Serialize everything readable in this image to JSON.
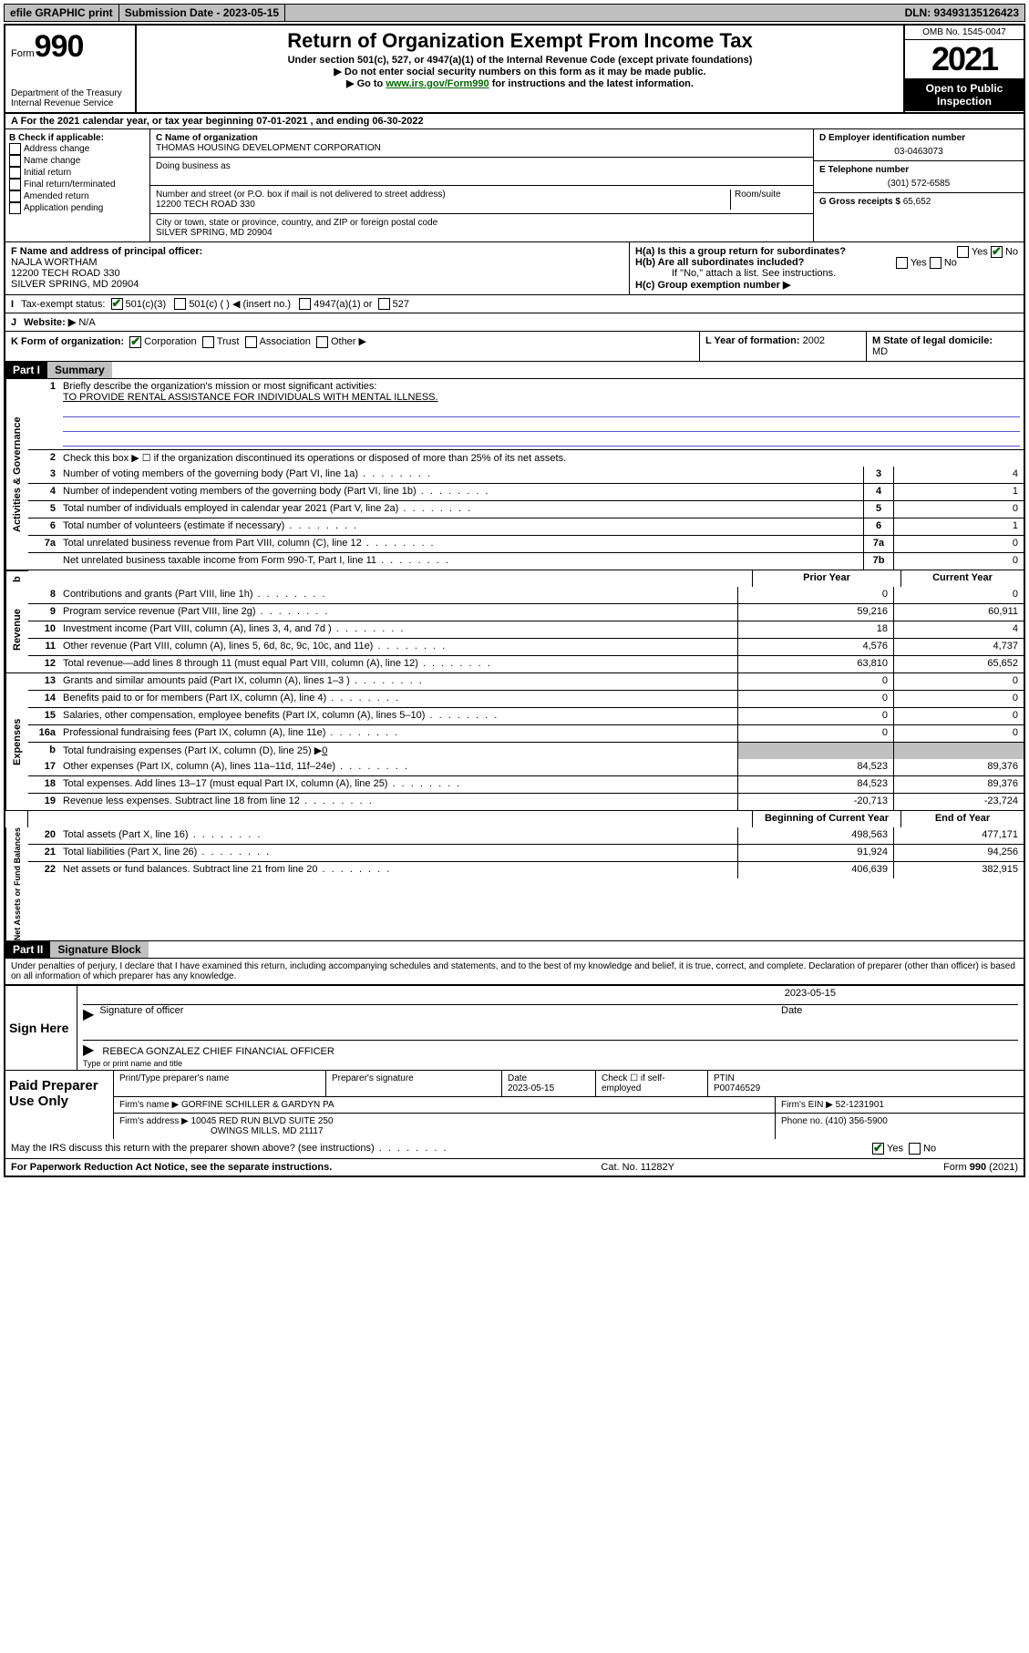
{
  "topbar": {
    "efile": "efile GRAPHIC print",
    "submission": "Submission Date - 2023-05-15",
    "dln": "DLN: 93493135126423"
  },
  "header": {
    "form_prefix": "Form",
    "form_number": "990",
    "title": "Return of Organization Exempt From Income Tax",
    "sub1": "Under section 501(c), 527, or 4947(a)(1) of the Internal Revenue Code (except private foundations)",
    "sub2": "▶ Do not enter social security numbers on this form as it may be made public.",
    "sub3_a": "▶ Go to ",
    "sub3_link": "www.irs.gov/Form990",
    "sub3_b": " for instructions and the latest information.",
    "dept": "Department of the Treasury",
    "irs": "Internal Revenue Service",
    "omb": "OMB No. 1545-0047",
    "year": "2021",
    "open": "Open to Public Inspection"
  },
  "line_a": "For the 2021 calendar year, or tax year beginning 07-01-2021   , and ending 06-30-2022",
  "box_b": {
    "label": "B Check if applicable:",
    "opts": [
      "Address change",
      "Name change",
      "Initial return",
      "Final return/terminated",
      "Amended return",
      "Application pending"
    ]
  },
  "box_c": {
    "label": "C Name of organization",
    "name": "THOMAS HOUSING DEVELOPMENT CORPORATION",
    "dba_label": "Doing business as",
    "addr_label": "Number and street (or P.O. box if mail is not delivered to street address)",
    "addr": "12200 TECH ROAD 330",
    "room_label": "Room/suite",
    "city_label": "City or town, state or province, country, and ZIP or foreign postal code",
    "city": "SILVER SPRING, MD  20904"
  },
  "box_d": {
    "label": "D Employer identification number",
    "val": "03-0463073"
  },
  "box_e": {
    "label": "E Telephone number",
    "val": "(301) 572-6585"
  },
  "box_g": {
    "label": "G Gross receipts $",
    "val": "65,652"
  },
  "box_f": {
    "label": "F Name and address of principal officer:",
    "name": "NAJLA WORTHAM",
    "addr1": "12200 TECH ROAD 330",
    "addr2": "SILVER SPRING, MD  20904"
  },
  "box_h": {
    "a": "H(a)  Is this a group return for subordinates?",
    "b": "H(b)  Are all subordinates included?",
    "note": "If \"No,\" attach a list. See instructions.",
    "c": "H(c)  Group exemption number ▶"
  },
  "line_i": {
    "label": "I",
    "txt": "Tax-exempt status:",
    "o1": "501(c)(3)",
    "o2": "501(c) (  ) ◀ (insert no.)",
    "o3": "4947(a)(1) or",
    "o4": "527"
  },
  "line_j": {
    "label": "J",
    "txt": "Website: ▶",
    "val": "N/A"
  },
  "line_k": {
    "label": "K Form of organization:",
    "o1": "Corporation",
    "o2": "Trust",
    "o3": "Association",
    "o4": "Other ▶"
  },
  "line_l": {
    "label": "L Year of formation:",
    "val": "2002"
  },
  "line_m": {
    "label": "M State of legal domicile:",
    "val": "MD"
  },
  "part1": {
    "hdr": "Part I",
    "title": "Summary"
  },
  "mission": {
    "q": "Briefly describe the organization's mission or most significant activities:",
    "txt": "TO PROVIDE RENTAL ASSISTANCE FOR INDIVIDUALS WITH MENTAL ILLNESS."
  },
  "line2": "Check this box ▶ ☐  if the organization discontinued its operations or disposed of more than 25% of its net assets.",
  "gov": {
    "tab": "Activities & Governance",
    "rows": [
      {
        "n": "3",
        "t": "Number of voting members of the governing body (Part VI, line 1a)",
        "b": "3",
        "v": "4"
      },
      {
        "n": "4",
        "t": "Number of independent voting members of the governing body (Part VI, line 1b)",
        "b": "4",
        "v": "1"
      },
      {
        "n": "5",
        "t": "Total number of individuals employed in calendar year 2021 (Part V, line 2a)",
        "b": "5",
        "v": "0"
      },
      {
        "n": "6",
        "t": "Total number of volunteers (estimate if necessary)",
        "b": "6",
        "v": "1"
      },
      {
        "n": "7a",
        "t": "Total unrelated business revenue from Part VIII, column (C), line 12",
        "b": "7a",
        "v": "0"
      },
      {
        "n": "",
        "t": "Net unrelated business taxable income from Form 990-T, Part I, line 11",
        "b": "7b",
        "v": "0"
      }
    ]
  },
  "col_hdrs": {
    "b_prefix": "b",
    "prior": "Prior Year",
    "current": "Current Year",
    "boy": "Beginning of Current Year",
    "eoy": "End of Year"
  },
  "rev": {
    "tab": "Revenue",
    "rows": [
      {
        "n": "8",
        "t": "Contributions and grants (Part VIII, line 1h)",
        "p": "0",
        "c": "0"
      },
      {
        "n": "9",
        "t": "Program service revenue (Part VIII, line 2g)",
        "p": "59,216",
        "c": "60,911"
      },
      {
        "n": "10",
        "t": "Investment income (Part VIII, column (A), lines 3, 4, and 7d )",
        "p": "18",
        "c": "4"
      },
      {
        "n": "11",
        "t": "Other revenue (Part VIII, column (A), lines 5, 6d, 8c, 9c, 10c, and 11e)",
        "p": "4,576",
        "c": "4,737"
      },
      {
        "n": "12",
        "t": "Total revenue—add lines 8 through 11 (must equal Part VIII, column (A), line 12)",
        "p": "63,810",
        "c": "65,652"
      }
    ]
  },
  "exp": {
    "tab": "Expenses",
    "rows": [
      {
        "n": "13",
        "t": "Grants and similar amounts paid (Part IX, column (A), lines 1–3 )",
        "p": "0",
        "c": "0"
      },
      {
        "n": "14",
        "t": "Benefits paid to or for members (Part IX, column (A), line 4)",
        "p": "0",
        "c": "0"
      },
      {
        "n": "15",
        "t": "Salaries, other compensation, employee benefits (Part IX, column (A), lines 5–10)",
        "p": "0",
        "c": "0"
      },
      {
        "n": "16a",
        "t": "Professional fundraising fees (Part IX, column (A), line 11e)",
        "p": "0",
        "c": "0"
      }
    ],
    "row_b": {
      "n": "b",
      "t": "Total fundraising expenses (Part IX, column (D), line 25) ▶",
      "v": "0"
    },
    "rows2": [
      {
        "n": "17",
        "t": "Other expenses (Part IX, column (A), lines 11a–11d, 11f–24e)",
        "p": "84,523",
        "c": "89,376"
      },
      {
        "n": "18",
        "t": "Total expenses. Add lines 13–17 (must equal Part IX, column (A), line 25)",
        "p": "84,523",
        "c": "89,376"
      },
      {
        "n": "19",
        "t": "Revenue less expenses. Subtract line 18 from line 12",
        "p": "-20,713",
        "c": "-23,724"
      }
    ]
  },
  "net": {
    "tab": "Net Assets or Fund Balances",
    "rows": [
      {
        "n": "20",
        "t": "Total assets (Part X, line 16)",
        "p": "498,563",
        "c": "477,171"
      },
      {
        "n": "21",
        "t": "Total liabilities (Part X, line 26)",
        "p": "91,924",
        "c": "94,256"
      },
      {
        "n": "22",
        "t": "Net assets or fund balances. Subtract line 21 from line 20",
        "p": "406,639",
        "c": "382,915"
      }
    ]
  },
  "part2": {
    "hdr": "Part II",
    "title": "Signature Block"
  },
  "penalty": "Under penalties of perjury, I declare that I have examined this return, including accompanying schedules and statements, and to the best of my knowledge and belief, it is true, correct, and complete. Declaration of preparer (other than officer) is based on all information of which preparer has any knowledge.",
  "sign": {
    "here": "Sign Here",
    "sig_label": "Signature of officer",
    "date_label": "Date",
    "date": "2023-05-15",
    "name": "REBECA GONZALEZ  CHIEF FINANCIAL OFFICER",
    "name_label": "Type or print name and title"
  },
  "paid": {
    "title": "Paid Preparer Use Only",
    "h1": "Print/Type preparer's name",
    "h2": "Preparer's signature",
    "h3": "Date",
    "date": "2023-05-15",
    "h4": "Check ☐ if self-employed",
    "h5": "PTIN",
    "ptin": "P00746529",
    "firm_label": "Firm's name    ▶",
    "firm": "GORFINE SCHILLER & GARDYN PA",
    "ein_label": "Firm's EIN ▶",
    "ein": "52-1231901",
    "addr_label": "Firm's address ▶",
    "addr1": "10045 RED RUN BLVD SUITE 250",
    "addr2": "OWINGS MILLS, MD  21117",
    "phone_label": "Phone no.",
    "phone": "(410) 356-5900"
  },
  "discuss": "May the IRS discuss this return with the preparer shown above? (see instructions)",
  "footer": {
    "left": "For Paperwork Reduction Act Notice, see the separate instructions.",
    "mid": "Cat. No. 11282Y",
    "right": "Form 990 (2021)"
  },
  "yn": {
    "yes": "Yes",
    "no": "No"
  }
}
